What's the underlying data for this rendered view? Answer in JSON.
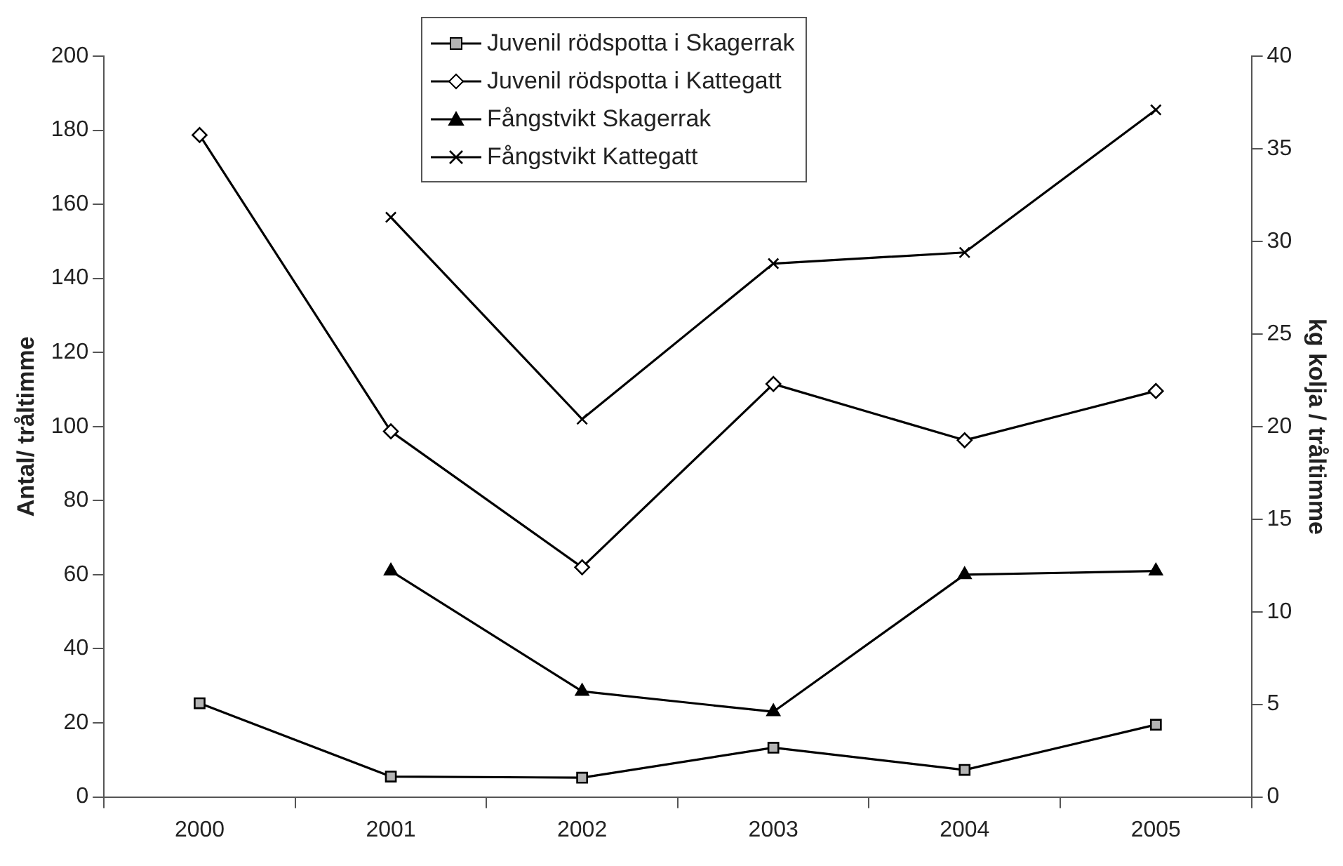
{
  "chart_data": {
    "type": "line",
    "categories": [
      "2000",
      "2001",
      "2002",
      "2003",
      "2004",
      "2005"
    ],
    "ylabel": "Antal/ tråltimme",
    "y2label": "kg kolja / tråltimme",
    "ylim": [
      0,
      200
    ],
    "yticks": [
      0,
      20,
      40,
      60,
      80,
      100,
      120,
      140,
      160,
      180,
      200
    ],
    "y2lim": [
      0,
      40
    ],
    "y2ticks": [
      0,
      5,
      10,
      15,
      20,
      25,
      30,
      35,
      40
    ],
    "grid": false,
    "legend": "top",
    "line_style": "solid",
    "series": [
      {
        "name": "Juvenil rödspotta i Skagerrak",
        "color": "#000000",
        "marker": "square",
        "values": [
          25.3,
          5.5,
          5.2,
          13.3,
          7.3,
          19.5
        ]
      },
      {
        "name": "Juvenil rödspotta i Kattegatt",
        "color": "#000000",
        "marker": "diamond",
        "values": [
          178.7,
          98.7,
          62.0,
          111.5,
          96.3,
          109.6
        ]
      },
      {
        "name": "Fångstvikt Skagerrak",
        "color": "#000000",
        "marker": "triangle",
        "axis": "y2",
        "values": [
          null,
          12.2,
          5.7,
          4.6,
          12.0,
          12.2
        ]
      },
      {
        "name": "Fångstvikt Kattegatt",
        "color": "#000000",
        "marker": "cross",
        "axis": "y2",
        "values": [
          null,
          31.3,
          20.4,
          28.8,
          29.4,
          37.1
        ]
      }
    ]
  }
}
